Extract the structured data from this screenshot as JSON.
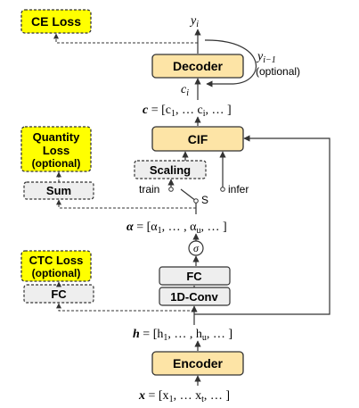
{
  "boxes": {
    "ce_loss": "CE Loss",
    "decoder": "Decoder",
    "cif": "CIF",
    "quantity_loss_1": "Quantity",
    "quantity_loss_2": "Loss",
    "quantity_loss_3": "(optional)",
    "scaling": "Scaling",
    "sum": "Sum",
    "ctc_loss_1": "CTC Loss",
    "ctc_loss_2": "(optional)",
    "fc_left": "FC",
    "fc": "FC",
    "conv": "1D-Conv",
    "encoder": "Encoder",
    "sigma": "σ"
  },
  "labels": {
    "y_i": "y",
    "y_i_sub": "i",
    "y_prev": "y",
    "y_prev_sub": "i−1",
    "y_prev_note": "(optional)",
    "c_i": "c",
    "c_i_sub": "i",
    "train": "train",
    "infer": "infer",
    "switch": "S"
  },
  "equations": {
    "c_lhs": "c",
    "c_rhs": " = [c",
    "c_sub1": "1",
    "c_mid": ", … c",
    "c_subi": "i",
    "c_end": ", … ]",
    "alpha_lhs": "α",
    "alpha_rhs": " = [α",
    "alpha_sub1": "1",
    "alpha_mid": ", … , α",
    "alpha_subu": "u",
    "alpha_end": ", … ]",
    "h_lhs": "h",
    "h_rhs": " = [h",
    "h_sub1": "1",
    "h_mid": ", … , h",
    "h_subu": "u",
    "h_end": ", … ]",
    "x_lhs": "x",
    "x_rhs": " = [x",
    "x_sub1": "1",
    "x_mid": ", … x",
    "x_subt": "t",
    "x_end": ", … ]"
  },
  "colors": {
    "yellow_box": "#ffff00",
    "orange_box": "#fde4a6",
    "gray_box": "#eeeeee",
    "line": "#333333"
  }
}
